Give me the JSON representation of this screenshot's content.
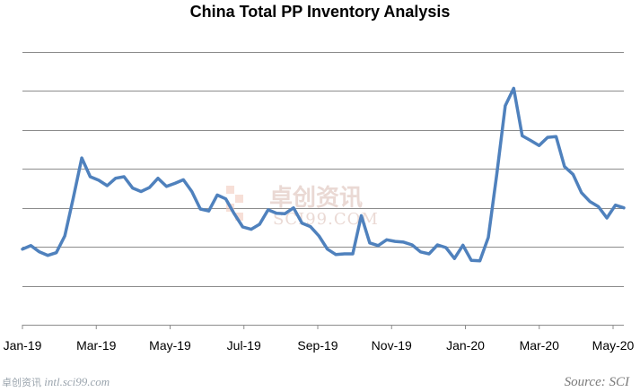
{
  "chart_data": {
    "type": "line",
    "title": "China Total PP Inventory Analysis",
    "xlabel": "",
    "ylabel": "",
    "x_tick_labels": [
      "Jan-19",
      "Mar-19",
      "May-19",
      "Jul-19",
      "Sep-19",
      "Nov-19",
      "Jan-20",
      "Mar-20",
      "May-20"
    ],
    "y_tick_labels": [],
    "ylim": [
      0,
      7
    ],
    "grid": "horizontal",
    "legend": "none",
    "series": [
      {
        "color": "#4f81bd",
        "values": [
          1.94,
          2.03,
          1.87,
          1.78,
          1.85,
          2.28,
          3.25,
          4.28,
          3.8,
          3.71,
          3.57,
          3.76,
          3.8,
          3.51,
          3.42,
          3.52,
          3.76,
          3.55,
          3.63,
          3.72,
          3.42,
          2.97,
          2.92,
          3.33,
          3.23,
          2.85,
          2.51,
          2.45,
          2.58,
          2.95,
          2.86,
          2.85,
          3.0,
          2.61,
          2.52,
          2.28,
          1.94,
          1.8,
          1.82,
          1.82,
          2.8,
          2.1,
          2.03,
          2.18,
          2.14,
          2.12,
          2.05,
          1.87,
          1.82,
          2.05,
          1.98,
          1.7,
          2.04,
          1.65,
          1.64,
          2.24,
          3.87,
          5.62,
          6.07,
          4.85,
          4.73,
          4.6,
          4.81,
          4.83,
          4.06,
          3.86,
          3.39,
          3.16,
          3.03,
          2.74,
          3.07,
          3.0
        ]
      }
    ]
  },
  "watermark": {
    "cn": "卓创资讯",
    "en": "SCI99.COM"
  },
  "footer": {
    "brand_cn": "卓创资讯",
    "site": "intl.sci99.com",
    "source": "Source: SCI"
  }
}
